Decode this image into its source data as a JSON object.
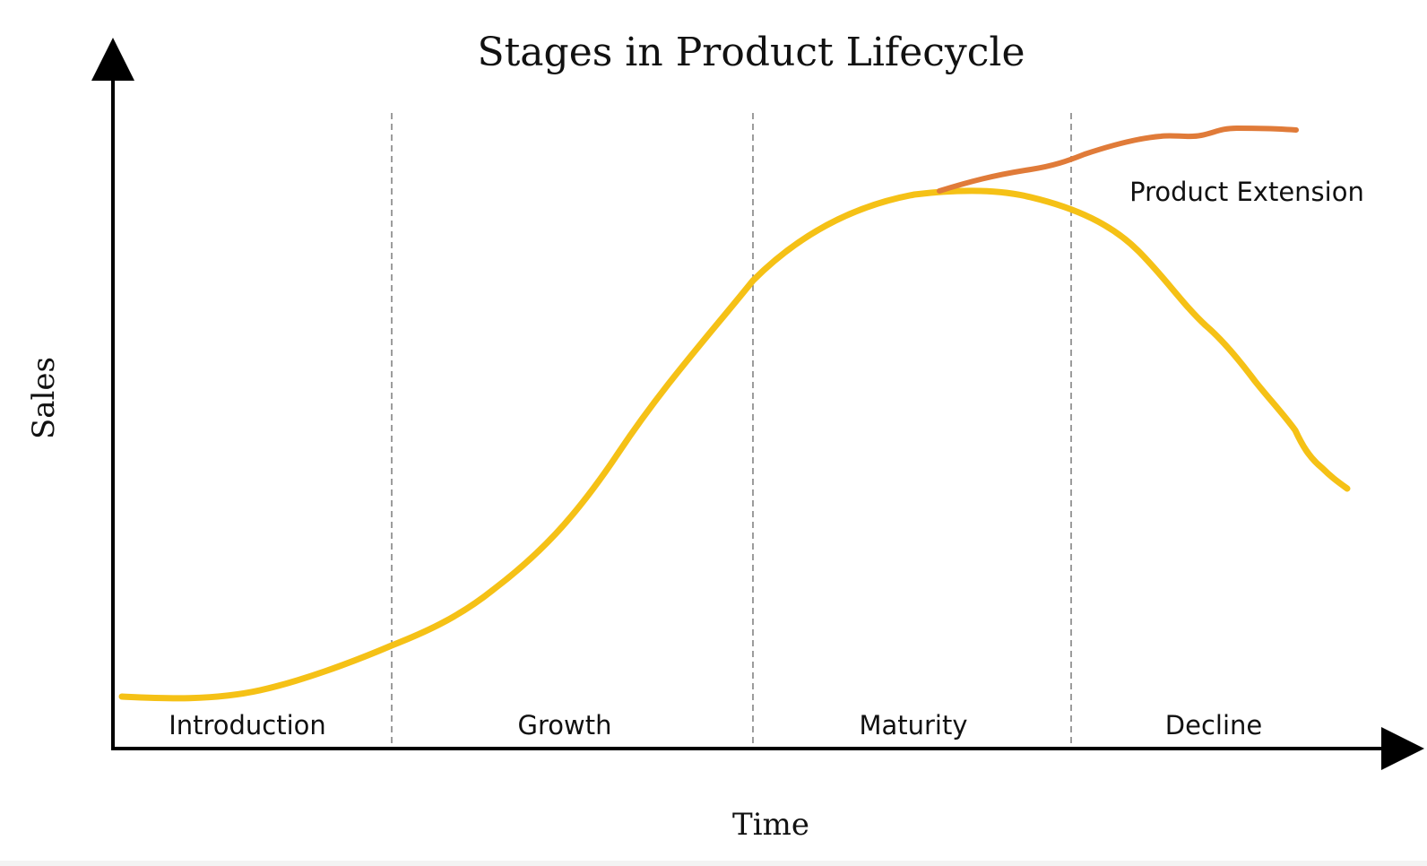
{
  "title": "Stages in Product Lifecycle",
  "x_axis_label": "Time",
  "y_axis_label": "Sales",
  "stages": [
    "Introduction",
    "Growth",
    "Maturity",
    "Decline"
  ],
  "extension_label": "Product Extension",
  "colors": {
    "main_curve": "#f5c116",
    "extension_curve": "#e07b39",
    "axes": "#000000",
    "dividers": "#666666"
  }
}
